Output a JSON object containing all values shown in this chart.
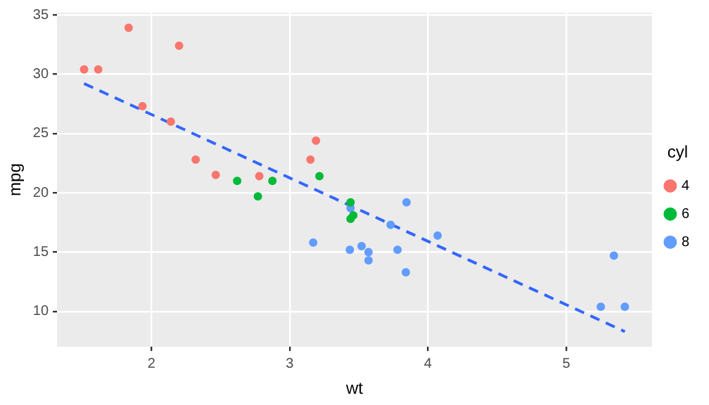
{
  "chart_data": {
    "type": "scatter",
    "xlabel": "wt",
    "ylabel": "mpg",
    "legend_title": "cyl",
    "xlim": [
      1.317,
      5.62
    ],
    "xticks": [
      2,
      3,
      4,
      5
    ],
    "ylim": [
      7.02,
      35.18
    ],
    "yticks": [
      10,
      15,
      20,
      25,
      30,
      35
    ],
    "grid": true,
    "legend": "right",
    "marker": "circle",
    "series": [
      {
        "name": "4",
        "color": "#f8766d",
        "x": [
          2.32,
          3.19,
          3.15,
          2.2,
          1.615,
          1.835,
          2.465,
          1.935,
          2.14,
          1.513,
          2.78
        ],
        "values": [
          22.8,
          24.4,
          22.8,
          32.4,
          30.4,
          33.9,
          21.5,
          27.3,
          26.0,
          30.4,
          21.4
        ]
      },
      {
        "name": "6",
        "color": "#00ba38",
        "x": [
          2.62,
          2.875,
          3.215,
          3.46,
          3.44,
          3.44,
          2.77
        ],
        "values": [
          21.0,
          21.0,
          21.4,
          18.1,
          19.2,
          17.8,
          19.7
        ]
      },
      {
        "name": "8",
        "color": "#619cff",
        "x": [
          3.44,
          3.57,
          4.07,
          3.73,
          3.78,
          5.25,
          5.424,
          5.345,
          3.52,
          3.435,
          3.84,
          3.845,
          3.17,
          3.57
        ],
        "values": [
          18.7,
          14.3,
          16.4,
          17.3,
          15.2,
          10.4,
          10.4,
          14.7,
          15.5,
          15.2,
          13.3,
          19.2,
          15.8,
          15.0
        ]
      },
      {
        "type": "line",
        "color": "#3366ff",
        "line_style": "dashed",
        "marker": "none",
        "x": [
          1.513,
          5.424
        ],
        "values": [
          29.2,
          8.3
        ]
      }
    ]
  }
}
